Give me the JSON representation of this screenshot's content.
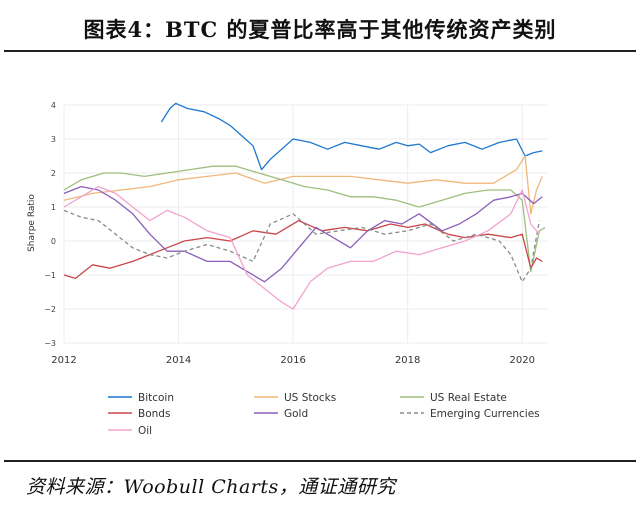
{
  "header": {
    "title": "图表4：BTC 的夏普比率高于其他传统资产类别"
  },
  "footer": {
    "source": "资料来源：Woobull Charts，通证通研究"
  },
  "chart_data": {
    "type": "line",
    "ylabel": "Sharpe Ratio",
    "xlabel": "",
    "xlim": [
      2012.0,
      2020.45
    ],
    "ylim": [
      -3,
      4
    ],
    "x_ticks": [
      2012,
      2014,
      2016,
      2018,
      2020
    ],
    "x_tick_labels": [
      "2012",
      "2014",
      "2016",
      "2018",
      "2020"
    ],
    "y_ticks": [
      4,
      3,
      2,
      1,
      0,
      -1,
      -2,
      -3
    ],
    "y_tick_labels": [
      "4",
      "3",
      "2",
      "1",
      "0",
      "−1",
      "−2",
      "−3"
    ],
    "grid": true,
    "legend_position": "bottom",
    "series": [
      {
        "name": "Bitcoin",
        "color": "#1f77d0",
        "dash": "none",
        "x": [
          2013.7,
          2013.85,
          2013.95,
          2014.15,
          2014.45,
          2014.7,
          2014.9,
          2015.1,
          2015.3,
          2015.45,
          2015.6,
          2015.8,
          2016.0,
          2016.3,
          2016.6,
          2016.9,
          2017.2,
          2017.5,
          2017.8,
          2018.0,
          2018.2,
          2018.4,
          2018.7,
          2019.0,
          2019.3,
          2019.6,
          2019.9,
          2020.05,
          2020.2,
          2020.35
        ],
        "y": [
          3.5,
          3.9,
          4.05,
          3.9,
          3.8,
          3.6,
          3.4,
          3.1,
          2.8,
          2.1,
          2.4,
          2.7,
          3.0,
          2.9,
          2.7,
          2.9,
          2.8,
          2.7,
          2.9,
          2.8,
          2.85,
          2.6,
          2.8,
          2.9,
          2.7,
          2.9,
          3.0,
          2.5,
          2.6,
          2.65
        ]
      },
      {
        "name": "US Stocks",
        "color": "#f0b77a",
        "dash": "none",
        "x": [
          2012.0,
          2012.5,
          2013.0,
          2013.5,
          2014.0,
          2014.5,
          2015.0,
          2015.5,
          2016.0,
          2016.5,
          2017.0,
          2017.5,
          2018.0,
          2018.5,
          2019.0,
          2019.5,
          2019.9,
          2020.05,
          2020.15,
          2020.25,
          2020.35
        ],
        "y": [
          1.2,
          1.4,
          1.5,
          1.6,
          1.8,
          1.9,
          2.0,
          1.7,
          1.9,
          1.9,
          1.9,
          1.8,
          1.7,
          1.8,
          1.7,
          1.7,
          2.1,
          2.5,
          0.8,
          1.5,
          1.9
        ]
      },
      {
        "name": "US Real Estate",
        "color": "#9fbf7e",
        "dash": "none",
        "x": [
          2012.0,
          2012.3,
          2012.7,
          2013.0,
          2013.4,
          2013.8,
          2014.2,
          2014.6,
          2015.0,
          2015.4,
          2015.8,
          2016.2,
          2016.6,
          2017.0,
          2017.4,
          2017.8,
          2018.2,
          2018.6,
          2019.0,
          2019.4,
          2019.8,
          2020.0,
          2020.15,
          2020.3,
          2020.4
        ],
        "y": [
          1.5,
          1.8,
          2.0,
          2.0,
          1.9,
          2.0,
          2.1,
          2.2,
          2.2,
          2.0,
          1.8,
          1.6,
          1.5,
          1.3,
          1.3,
          1.2,
          1.0,
          1.2,
          1.4,
          1.5,
          1.5,
          1.2,
          -0.9,
          0.3,
          0.4
        ]
      },
      {
        "name": "Bonds",
        "color": "#c9464a",
        "dash": "none",
        "x": [
          2012.0,
          2012.2,
          2012.5,
          2012.8,
          2013.2,
          2013.5,
          2013.8,
          2014.1,
          2014.5,
          2014.9,
          2015.3,
          2015.7,
          2016.1,
          2016.5,
          2016.9,
          2017.3,
          2017.7,
          2018.0,
          2018.3,
          2018.7,
          2019.0,
          2019.4,
          2019.8,
          2020.0,
          2020.15,
          2020.25,
          2020.35
        ],
        "y": [
          -1.0,
          -1.1,
          -0.7,
          -0.8,
          -0.6,
          -0.4,
          -0.2,
          0.0,
          0.1,
          0.0,
          0.3,
          0.2,
          0.6,
          0.3,
          0.4,
          0.3,
          0.5,
          0.4,
          0.5,
          0.2,
          0.1,
          0.2,
          0.1,
          0.2,
          -0.8,
          -0.5,
          -0.6
        ]
      },
      {
        "name": "Gold",
        "color": "#8b5fb8",
        "dash": "none",
        "x": [
          2012.0,
          2012.3,
          2012.6,
          2012.9,
          2013.2,
          2013.5,
          2013.8,
          2014.1,
          2014.5,
          2014.9,
          2015.2,
          2015.5,
          2015.8,
          2016.1,
          2016.4,
          2016.7,
          2017.0,
          2017.3,
          2017.6,
          2017.9,
          2018.2,
          2018.6,
          2018.9,
          2019.2,
          2019.5,
          2019.8,
          2020.0,
          2020.2,
          2020.35
        ],
        "y": [
          1.4,
          1.6,
          1.5,
          1.2,
          0.8,
          0.2,
          -0.3,
          -0.3,
          -0.6,
          -0.6,
          -0.9,
          -1.2,
          -0.8,
          -0.2,
          0.4,
          0.1,
          -0.2,
          0.3,
          0.6,
          0.5,
          0.8,
          0.3,
          0.5,
          0.8,
          1.2,
          1.3,
          1.4,
          1.1,
          1.3
        ]
      },
      {
        "name": "Emerging Currencies",
        "color": "#8a8a8a",
        "dash": "4,3",
        "x": [
          2012.0,
          2012.3,
          2012.6,
          2012.9,
          2013.2,
          2013.5,
          2013.8,
          2014.1,
          2014.5,
          2014.9,
          2015.3,
          2015.6,
          2016.0,
          2016.4,
          2016.8,
          2017.2,
          2017.6,
          2018.0,
          2018.4,
          2018.8,
          2019.2,
          2019.6,
          2019.8,
          2020.0,
          2020.15,
          2020.3
        ],
        "y": [
          0.9,
          0.7,
          0.6,
          0.2,
          -0.2,
          -0.4,
          -0.5,
          -0.3,
          -0.1,
          -0.3,
          -0.6,
          0.5,
          0.8,
          0.2,
          0.3,
          0.4,
          0.2,
          0.3,
          0.5,
          0.0,
          0.2,
          0.0,
          -0.4,
          -1.2,
          -0.8,
          0.6
        ]
      },
      {
        "name": "Oil",
        "color": "#f0a3cf",
        "dash": "none",
        "x": [
          2012.0,
          2012.3,
          2012.6,
          2012.9,
          2013.2,
          2013.5,
          2013.8,
          2014.1,
          2014.5,
          2014.9,
          2015.2,
          2015.5,
          2015.8,
          2016.0,
          2016.3,
          2016.6,
          2017.0,
          2017.4,
          2017.8,
          2018.2,
          2018.6,
          2019.0,
          2019.4,
          2019.8,
          2020.0,
          2020.15,
          2020.3
        ],
        "y": [
          1.0,
          1.3,
          1.6,
          1.4,
          1.0,
          0.6,
          0.9,
          0.7,
          0.3,
          0.1,
          -1.0,
          -1.4,
          -1.8,
          -2.0,
          -1.2,
          -0.8,
          -0.6,
          -0.6,
          -0.3,
          -0.4,
          -0.2,
          0.0,
          0.3,
          0.8,
          1.5,
          0.5,
          0.2
        ]
      }
    ]
  }
}
